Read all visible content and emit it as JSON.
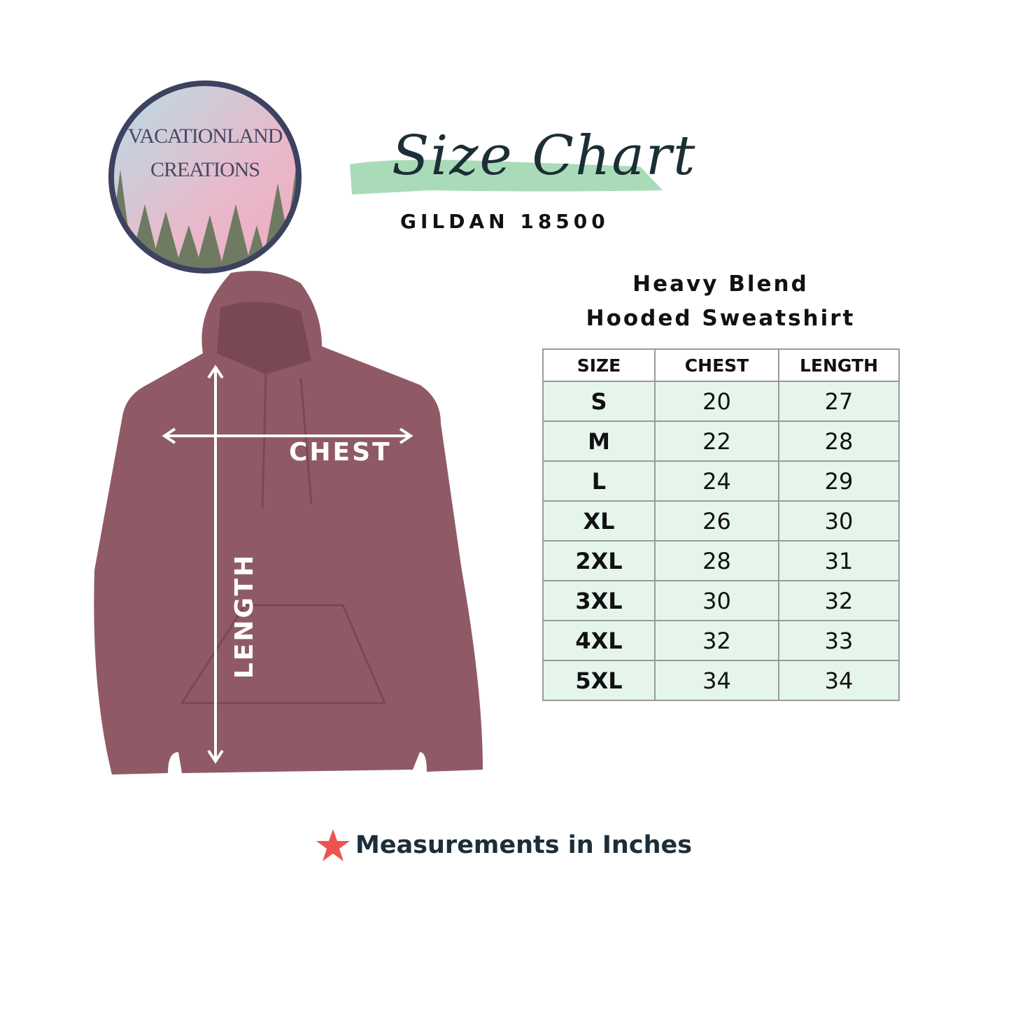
{
  "logo": {
    "line1": "VACATIONLAND",
    "line2": "CREATIONS"
  },
  "header": {
    "title": "Size Chart",
    "subtitle": "GILDAN 18500"
  },
  "product": {
    "line1": "Heavy Blend",
    "line2": "Hooded Sweatshirt"
  },
  "table": {
    "headers": [
      "SIZE",
      "CHEST",
      "LENGTH"
    ],
    "rows": [
      [
        "S",
        "20",
        "27"
      ],
      [
        "M",
        "22",
        "28"
      ],
      [
        "L",
        "24",
        "29"
      ],
      [
        "XL",
        "26",
        "30"
      ],
      [
        "2XL",
        "28",
        "31"
      ],
      [
        "3XL",
        "30",
        "32"
      ],
      [
        "4XL",
        "32",
        "33"
      ],
      [
        "5XL",
        "34",
        "34"
      ]
    ]
  },
  "diagram": {
    "chest_label": "CHEST",
    "length_label": "LENGTH",
    "garment_color": "#8f5a66"
  },
  "footer": {
    "icon": "star-icon",
    "icon_color": "#ef5350",
    "note": "Measurements in Inches"
  },
  "colors": {
    "brush": "#a9dbb9",
    "title": "#1c2e36",
    "table_fill": "#e5f5ec"
  }
}
